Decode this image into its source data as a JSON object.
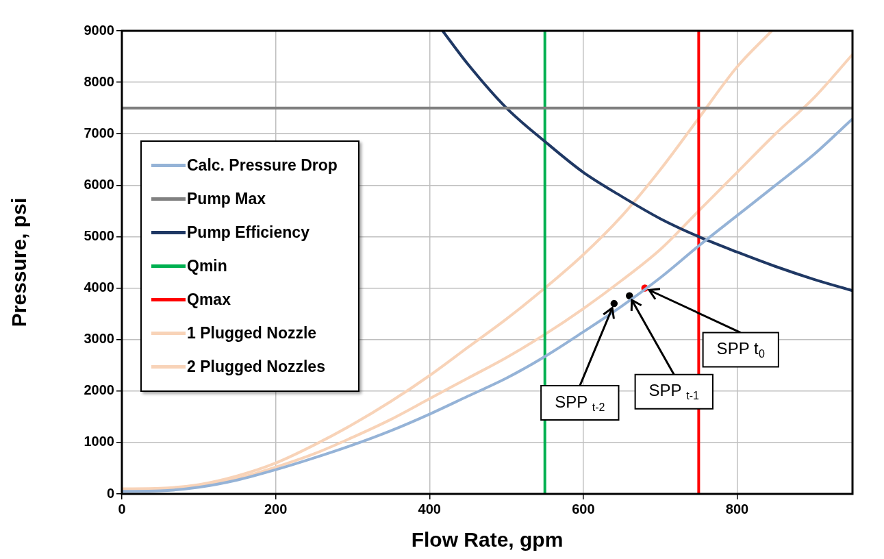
{
  "chart_data": {
    "type": "line",
    "xlabel": "Flow Rate, gpm",
    "ylabel": "Pressure, psi",
    "xlim": [
      0,
      950
    ],
    "ylim": [
      0,
      9000
    ],
    "xticks": [
      0,
      200,
      400,
      600,
      800
    ],
    "yticks": [
      0,
      1000,
      2000,
      3000,
      4000,
      5000,
      6000,
      7000,
      8000,
      9000
    ],
    "grid": true,
    "legend": "left",
    "series": [
      {
        "name": "Calc. Pressure Drop",
        "color": "#95b3d7",
        "x": [
          0,
          50,
          100,
          150,
          200,
          250,
          300,
          350,
          400,
          450,
          500,
          550,
          600,
          650,
          700,
          750,
          800,
          850,
          900,
          950
        ],
        "values": [
          50,
          60,
          130,
          270,
          470,
          700,
          950,
          1230,
          1550,
          1900,
          2250,
          2670,
          3150,
          3650,
          4200,
          4820,
          5410,
          6000,
          6600,
          7290
        ]
      },
      {
        "name": "Pump Max",
        "color": "#808080",
        "x": [
          0,
          950
        ],
        "values": [
          7500,
          7500
        ]
      },
      {
        "name": "Pump Efficiency",
        "color": "#1f3864",
        "x": [
          417,
          450,
          500,
          550,
          600,
          650,
          700,
          750,
          800,
          850,
          900,
          950
        ],
        "values": [
          9000,
          8350,
          7500,
          6850,
          6250,
          5780,
          5350,
          5000,
          4700,
          4420,
          4170,
          3950
        ]
      },
      {
        "name": "Qmin",
        "color": "#00b050",
        "x": [
          550,
          550
        ],
        "values": [
          0,
          9000
        ]
      },
      {
        "name": "Qmax",
        "color": "#ff0000",
        "x": [
          750,
          750
        ],
        "values": [
          0,
          9000
        ]
      },
      {
        "name": "1 Plugged Nozzle",
        "color": "#f8d3b8",
        "x": [
          0,
          50,
          100,
          150,
          200,
          250,
          300,
          350,
          400,
          450,
          500,
          550,
          600,
          650,
          700,
          750,
          800,
          850,
          900,
          950
        ],
        "values": [
          80,
          90,
          150,
          300,
          520,
          780,
          1100,
          1450,
          1850,
          2250,
          2650,
          3100,
          3600,
          4150,
          4750,
          5500,
          6250,
          7000,
          7700,
          8540
        ]
      },
      {
        "name": "2 Plugged Nozzles",
        "color": "#f8d3b8",
        "x": [
          0,
          50,
          100,
          150,
          200,
          250,
          300,
          350,
          400,
          450,
          500,
          550,
          600,
          650,
          700,
          750,
          800,
          845
        ],
        "values": [
          100,
          110,
          180,
          350,
          600,
          950,
          1350,
          1800,
          2300,
          2850,
          3400,
          4000,
          4650,
          5400,
          6300,
          7300,
          8300,
          9000
        ]
      },
      {
        "type": "scatter",
        "marker": "circle",
        "color": "#ff0000",
        "x": [
          680
        ],
        "values": [
          4000
        ]
      },
      {
        "type": "scatter",
        "marker": "circle",
        "color": "#000000",
        "x": [
          660
        ],
        "values": [
          3850
        ]
      },
      {
        "type": "scatter",
        "marker": "circle",
        "color": "#000000",
        "x": [
          640
        ],
        "values": [
          3700
        ]
      }
    ],
    "annotations": [
      {
        "text": "SPP t$_{0}$",
        "x": 680,
        "y": 4000
      },
      {
        "text": "SPP $_{t-1}$",
        "x": 660,
        "y": 3850
      },
      {
        "text": "SPP $_{t-2}$",
        "x": 640,
        "y": 3700
      }
    ]
  }
}
